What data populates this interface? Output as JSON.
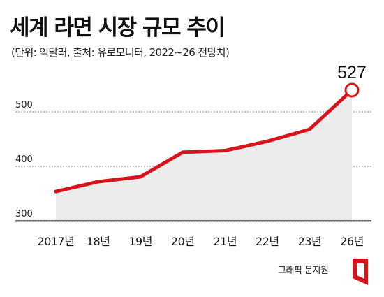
{
  "title": "세계 라면 시장 규모 추이",
  "subtitle": "(단위: 억달러, 출처: 유로모니터, 2022~26 전망치)",
  "credit": "그래픽 문지원",
  "colors": {
    "line": "#d7141a",
    "area": "#ececec",
    "grid": "#888888",
    "text": "#111111"
  },
  "chart_data": {
    "type": "line",
    "title": "세계 라면 시장 규모 추이",
    "xlabel": "",
    "ylabel": "",
    "categories": [
      "2017년",
      "18년",
      "19년",
      "20년",
      "21년",
      "22년",
      "23년",
      "26년"
    ],
    "values": [
      341,
      359,
      368,
      413,
      416,
      433,
      455,
      527
    ],
    "yticks": [
      300,
      400,
      500
    ],
    "ylim": [
      290,
      540
    ],
    "grid": true,
    "highlight": {
      "index": 7,
      "label": "527"
    }
  }
}
